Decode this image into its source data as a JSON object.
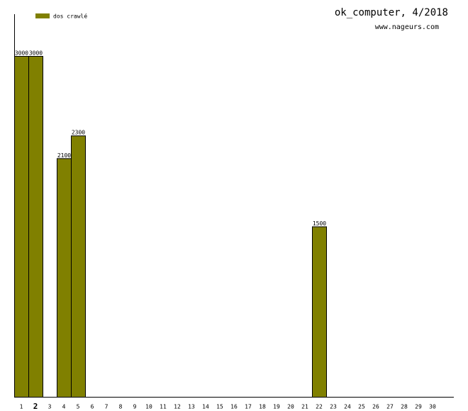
{
  "chart_data": {
    "type": "bar",
    "title": "ok_computer, 4/2018",
    "subtitle": "www.nageurs.com",
    "categories": [
      "1",
      "2",
      "3",
      "4",
      "5",
      "6",
      "7",
      "8",
      "9",
      "10",
      "11",
      "12",
      "13",
      "14",
      "15",
      "16",
      "17",
      "18",
      "19",
      "20",
      "21",
      "22",
      "23",
      "24",
      "25",
      "26",
      "27",
      "28",
      "29",
      "30"
    ],
    "series": [
      {
        "name": "dos crawlé",
        "color": "#808000",
        "values": [
          3000,
          3000,
          null,
          2100,
          2300,
          null,
          null,
          null,
          null,
          null,
          null,
          null,
          null,
          null,
          null,
          null,
          null,
          null,
          null,
          null,
          null,
          1500,
          null,
          null,
          null,
          null,
          null,
          null,
          null,
          null
        ]
      }
    ],
    "highlight_index": 1
  }
}
